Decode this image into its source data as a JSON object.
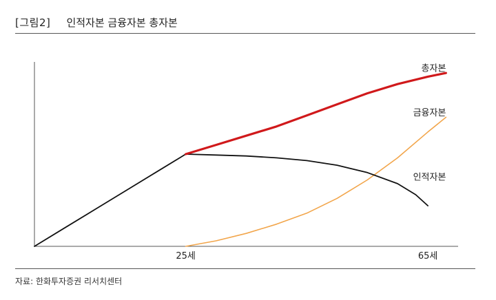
{
  "figure": {
    "label": "[그림2]",
    "title": "인적자본 금융자본 총자본",
    "source": "자료: 한화투자증권 리서치센터"
  },
  "chart_data": {
    "type": "line",
    "title": "인적자본 금융자본 총자본",
    "xlabel": "",
    "ylabel": "",
    "xlim": [
      0,
      70
    ],
    "ylim": [
      0,
      100
    ],
    "grid": false,
    "x_ticks": [
      {
        "value": 25,
        "label": "25세"
      },
      {
        "value": 65,
        "label": "65세"
      }
    ],
    "series": [
      {
        "name": "총자본",
        "color": "#d0191b",
        "label_anchor": {
          "x": 68,
          "y": 92
        },
        "x": [
          25,
          30,
          35,
          40,
          45,
          50,
          55,
          60,
          65,
          68
        ],
        "y": [
          50,
          55,
          60,
          65,
          71,
          77,
          83,
          88,
          92,
          94
        ]
      },
      {
        "name": "금융자본",
        "color": "#f2a54a",
        "label_anchor": {
          "x": 68,
          "y": 68
        },
        "x": [
          25,
          30,
          35,
          40,
          45,
          50,
          55,
          60,
          65,
          68
        ],
        "y": [
          0,
          3,
          7,
          12,
          18,
          26,
          36,
          48,
          62,
          70
        ]
      },
      {
        "name": "인적자본",
        "color": "#111111",
        "label_anchor": {
          "x": 68,
          "y": 33
        },
        "x": [
          0,
          5,
          10,
          15,
          20,
          24,
          25,
          30,
          35,
          40,
          45,
          50,
          55,
          60,
          63,
          65
        ],
        "y": [
          0,
          10,
          20,
          30,
          40,
          48,
          50,
          49.5,
          49,
          48,
          46.5,
          44,
          40,
          34,
          28,
          22
        ]
      }
    ]
  }
}
